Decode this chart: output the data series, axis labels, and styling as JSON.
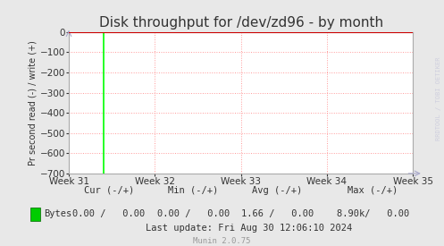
{
  "title": "Disk throughput for /dev/zd96 - by month",
  "ylabel": "Pr second read (-) / write (+)",
  "background_color": "#e8e8e8",
  "plot_bg_color": "#ffffff",
  "grid_color": "#ff9999",
  "ylim": [
    -700,
    0
  ],
  "yticks": [
    0,
    -100,
    -200,
    -300,
    -400,
    -500,
    -600,
    -700
  ],
  "xtick_labels": [
    "Week 31",
    "Week 32",
    "Week 33",
    "Week 34",
    "Week 35"
  ],
  "green_line_x": 0.1,
  "green_line_color": "#00ff00",
  "axis_color": "#aaaaaa",
  "title_color": "#333333",
  "title_fontsize": 11,
  "legend_label": "Bytes",
  "legend_color": "#00cc00",
  "footer_cur": "0.00 /   0.00",
  "footer_min": "0.00 /   0.00",
  "footer_avg": "1.66 /   0.00",
  "footer_max": "8.90k/   0.00",
  "footer_last_update": "Last update: Fri Aug 30 12:06:10 2024",
  "munin_version": "Munin 2.0.75",
  "watermark": "RRDTOOL / TOBI OETIKER",
  "border_color": "#cc0000",
  "tick_color": "#333333",
  "tick_fontsize": 7.5,
  "footer_fontsize": 7.5,
  "munin_color": "#999999"
}
